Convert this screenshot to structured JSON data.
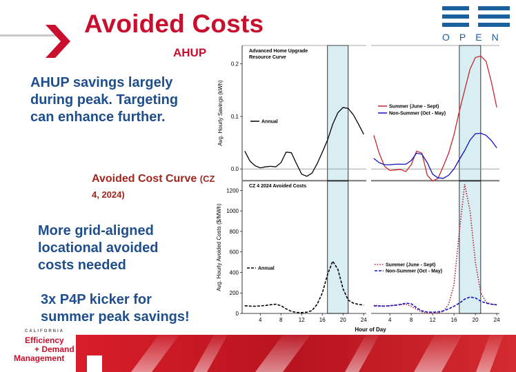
{
  "slide": {
    "title": "Avoided Costs",
    "subtitle": "AHUP",
    "bullet1": [
      "AHUP savings largely",
      "during peak. Targeting",
      "can enhance further."
    ],
    "avoided_title": "Avoided Cost Curve",
    "avoided_zone_a": "(CZ",
    "avoided_zone_b": "4, 2024)",
    "bullet2": [
      "More grid-aligned",
      "locational avoided",
      "costs needed"
    ],
    "bullet3": [
      "3x P4P kicker for",
      "summer peak savings!"
    ],
    "logo_lines": [
      "CALIFORNIA",
      "Efficiency",
      "+ Demand",
      "Management"
    ],
    "open_logo": [
      "O",
      "P",
      "E",
      "N"
    ],
    "colors": {
      "title": "#c8102e",
      "bullet": "#1f4e8c",
      "avoided": "#a0261e",
      "open_blue": "#1a5f9e",
      "highlight": "#d8eef2",
      "summer": "#c8242b",
      "nonsummer": "#1010c0"
    }
  },
  "chart_data": [
    {
      "type": "line",
      "title": "Advanced Home Upgrade Resource Curve",
      "ylabel": "Avg. Hourly Savings (kWh)",
      "yticks": [
        0.0,
        0.1,
        0.2
      ],
      "ytick_labels": [
        "0.0",
        "0.1",
        "0.2"
      ],
      "ylim": [
        -0.022,
        0.235
      ],
      "xlim": [
        0.5,
        24.5
      ],
      "highlight_hours": [
        17,
        21
      ],
      "panels": [
        {
          "position": "left",
          "series": [
            {
              "name": "Annual",
              "style": "solid",
              "color": "#000000",
              "x": [
                1,
                2,
                3,
                4,
                5,
                6,
                7,
                8,
                9,
                10,
                11,
                12,
                13,
                14,
                15,
                16,
                17,
                18,
                19,
                20,
                21,
                22,
                23,
                24
              ],
              "values": [
                0.034,
                0.015,
                0.006,
                0.002,
                0.004,
                0.005,
                0.004,
                0.012,
                0.032,
                0.031,
                0.01,
                -0.01,
                -0.014,
                -0.008,
                0.01,
                0.032,
                0.055,
                0.085,
                0.107,
                0.117,
                0.115,
                0.103,
                0.085,
                0.066
              ]
            }
          ]
        },
        {
          "position": "right",
          "series": [
            {
              "name": "Summer (June - Sept)",
              "style": "solid",
              "color": "#c8242b",
              "x": [
                1,
                2,
                3,
                4,
                5,
                6,
                7,
                8,
                9,
                10,
                11,
                12,
                13,
                14,
                15,
                16,
                17,
                18,
                19,
                20,
                21,
                22,
                23,
                24
              ],
              "values": [
                0.064,
                0.03,
                0.005,
                -0.003,
                -0.002,
                -0.001,
                -0.005,
                0.008,
                0.034,
                0.03,
                -0.012,
                -0.023,
                -0.018,
                0.005,
                0.03,
                0.065,
                0.11,
                0.15,
                0.19,
                0.212,
                0.215,
                0.205,
                0.165,
                0.117
              ]
            },
            {
              "name": "Non-Summer (Oct - May)",
              "style": "solid",
              "color": "#1010c0",
              "x": [
                1,
                2,
                3,
                4,
                5,
                6,
                7,
                8,
                9,
                10,
                11,
                12,
                13,
                14,
                15,
                16,
                17,
                18,
                19,
                20,
                21,
                22,
                23,
                24
              ],
              "values": [
                0.02,
                0.012,
                0.008,
                0.008,
                0.009,
                0.009,
                0.009,
                0.016,
                0.03,
                0.028,
                0.012,
                -0.01,
                -0.017,
                -0.018,
                -0.012,
                0.0,
                0.018,
                0.035,
                0.055,
                0.067,
                0.068,
                0.064,
                0.054,
                0.04
              ]
            }
          ]
        }
      ]
    },
    {
      "type": "line",
      "title": "CZ 4 2024 Avoided Costs",
      "ylabel": "Avg. Hourly Avoided Costs ($/MWh)",
      "xlabel": "Hour of Day",
      "yticks": [
        0,
        200,
        400,
        600,
        800,
        1000,
        1200
      ],
      "ytick_labels": [
        "0",
        "200",
        "400",
        "600",
        "800",
        "1000",
        "1200"
      ],
      "xticks": [
        4,
        8,
        12,
        16,
        20,
        24
      ],
      "xtick_labels": [
        "4",
        "8",
        "12",
        "16",
        "20",
        "24"
      ],
      "ylim": [
        0,
        1290
      ],
      "xlim": [
        0.5,
        24.5
      ],
      "highlight_hours": [
        17,
        21
      ],
      "panels": [
        {
          "position": "left",
          "series": [
            {
              "name": "Annual",
              "style": "dashed",
              "color": "#000000",
              "x": [
                1,
                2,
                3,
                4,
                5,
                6,
                7,
                8,
                9,
                10,
                11,
                12,
                13,
                14,
                15,
                16,
                17,
                18,
                19,
                20,
                21,
                22,
                23,
                24
              ],
              "values": [
                75,
                72,
                70,
                74,
                78,
                85,
                90,
                75,
                45,
                20,
                10,
                8,
                12,
                28,
                90,
                200,
                380,
                510,
                430,
                240,
                130,
                100,
                88,
                82
              ]
            }
          ]
        },
        {
          "position": "right",
          "series": [
            {
              "name": "Summer (June - Sept)",
              "style": "dotted",
              "color": "#b22233",
              "x": [
                1,
                2,
                3,
                4,
                5,
                6,
                7,
                8,
                9,
                10,
                11,
                12,
                13,
                14,
                15,
                16,
                17,
                18,
                19,
                20,
                21,
                22,
                23,
                24
              ],
              "values": [
                78,
                75,
                72,
                75,
                80,
                85,
                90,
                70,
                40,
                15,
                5,
                3,
                5,
                20,
                90,
                280,
                800,
                1260,
                1000,
                500,
                200,
                110,
                90,
                82
              ]
            },
            {
              "name": "Non-Summer (Oct - May)",
              "style": "dashed",
              "color": "#1010c0",
              "x": [
                1,
                2,
                3,
                4,
                5,
                6,
                7,
                8,
                9,
                10,
                11,
                12,
                13,
                14,
                15,
                16,
                17,
                18,
                19,
                20,
                21,
                22,
                23,
                24
              ],
              "values": [
                74,
                72,
                71,
                75,
                80,
                88,
                100,
                95,
                55,
                25,
                14,
                12,
                15,
                25,
                45,
                70,
                100,
                140,
                160,
                152,
                120,
                100,
                90,
                85
              ]
            }
          ]
        }
      ]
    }
  ]
}
